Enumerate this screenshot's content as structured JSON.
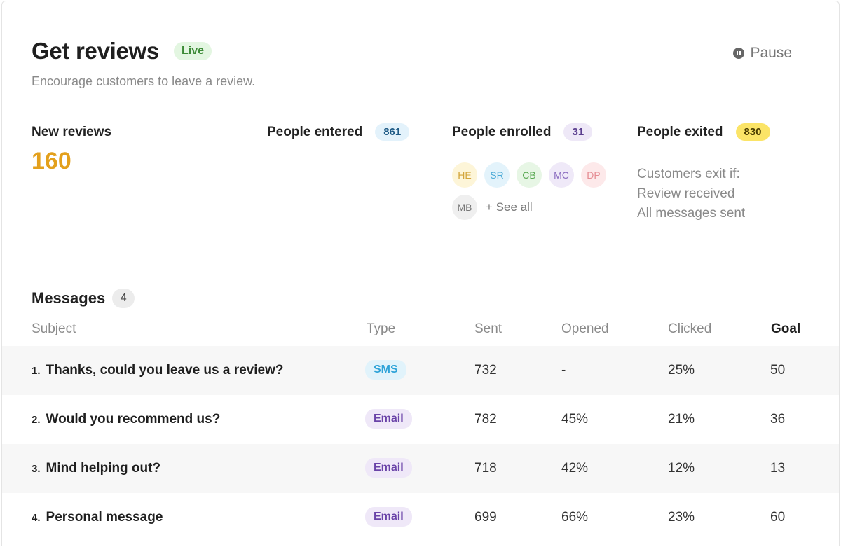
{
  "header": {
    "title": "Get reviews",
    "status_badge": "Live",
    "subtitle": "Encourage customers to leave a review.",
    "pause_label": "Pause"
  },
  "stats": {
    "new_reviews": {
      "label": "New reviews",
      "value": "160",
      "color": "#e3a01c"
    },
    "people_entered": {
      "label": "People entered",
      "count": "861",
      "badge_bg": "#e3f2fb",
      "badge_fg": "#1f5b86"
    },
    "people_enrolled": {
      "label": "People enrolled",
      "count": "31",
      "badge_bg": "#eee8f7",
      "badge_fg": "#5b3f8f",
      "avatars": [
        {
          "initials": "HE",
          "bg": "#fdf5d8",
          "fg": "#d3a53a"
        },
        {
          "initials": "SR",
          "bg": "#e3f3fb",
          "fg": "#4aa9d6"
        },
        {
          "initials": "CB",
          "bg": "#e7f6e5",
          "fg": "#58a851"
        },
        {
          "initials": "MC",
          "bg": "#efe9f8",
          "fg": "#8a6bbf"
        },
        {
          "initials": "DP",
          "bg": "#fde9ea",
          "fg": "#e58b92"
        },
        {
          "initials": "MB",
          "bg": "#efefef",
          "fg": "#777777"
        }
      ],
      "see_all_label": "+ See all"
    },
    "people_exited": {
      "label": "People exited",
      "count": "830",
      "badge_bg": "#fbe467",
      "badge_fg": "#4a3d00",
      "exit_heading": "Customers exit if:",
      "exit_conditions": [
        "Review received",
        "All messages sent"
      ]
    }
  },
  "messages": {
    "title": "Messages",
    "count": "4",
    "columns": {
      "subject": "Subject",
      "type": "Type",
      "sent": "Sent",
      "opened": "Opened",
      "clicked": "Clicked",
      "goal": "Goal"
    },
    "rows": [
      {
        "num": "1.",
        "subject": "Thanks, could you leave us a review?",
        "type": "SMS",
        "sent": "732",
        "opened": "-",
        "clicked": "25%",
        "goal": "50"
      },
      {
        "num": "2.",
        "subject": "Would you recommend us?",
        "type": "Email",
        "sent": "782",
        "opened": "45%",
        "clicked": "21%",
        "goal": "36"
      },
      {
        "num": "3.",
        "subject": "Mind helping out?",
        "type": "Email",
        "sent": "718",
        "opened": "42%",
        "clicked": "12%",
        "goal": "13"
      },
      {
        "num": "4.",
        "subject": "Personal message",
        "type": "Email",
        "sent": "699",
        "opened": "66%",
        "clicked": "23%",
        "goal": "60"
      }
    ],
    "type_colors": {
      "SMS": {
        "bg": "#e1f3fb",
        "fg": "#2ea3d8"
      },
      "Email": {
        "bg": "#efe8f8",
        "fg": "#6a43a8"
      }
    }
  }
}
